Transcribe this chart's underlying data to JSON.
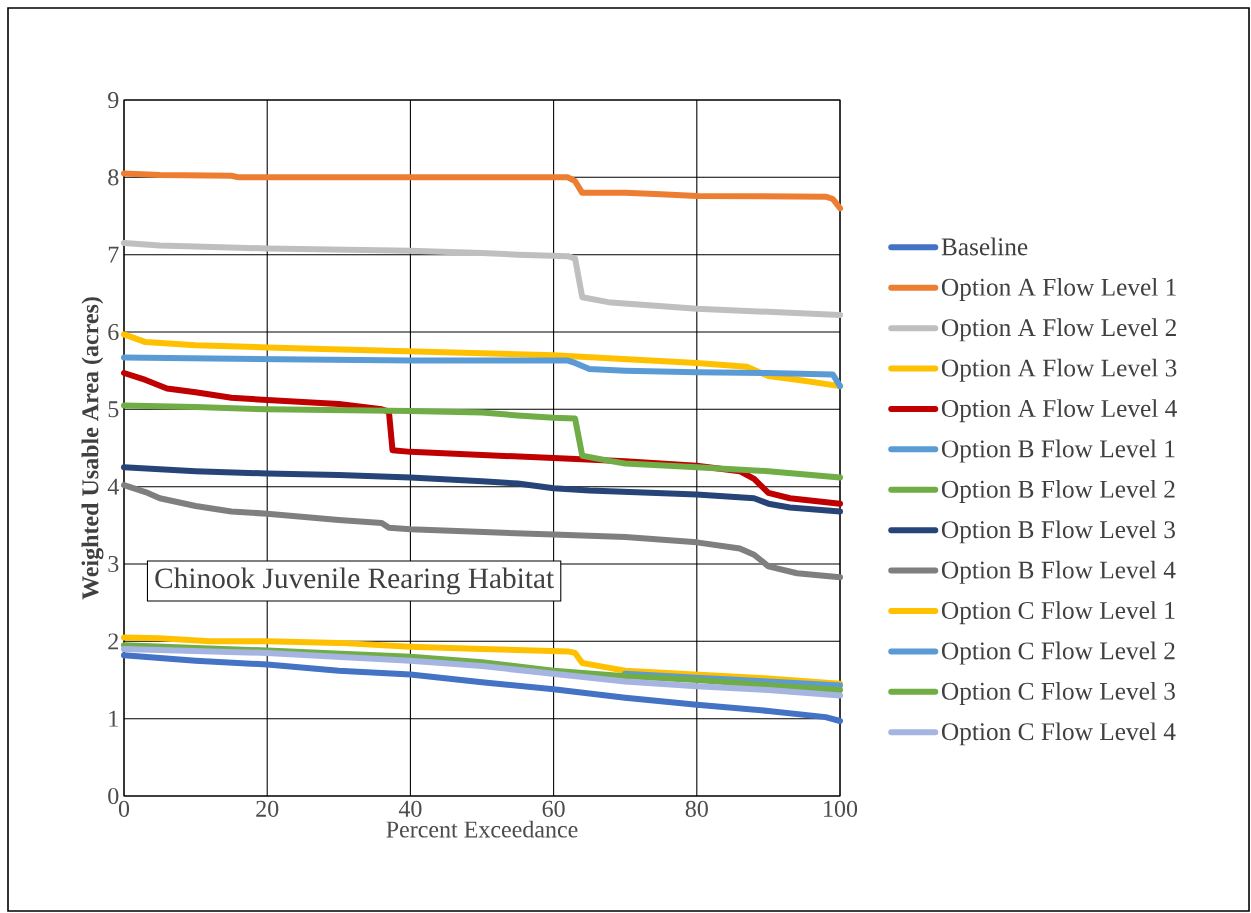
{
  "chart_data": {
    "type": "line",
    "xlabel": "Percent Exceedance",
    "ylabel": "Weighted Usable Area (acres)",
    "xlim": [
      0,
      100
    ],
    "ylim": [
      0,
      9
    ],
    "xticks": [
      0,
      20,
      40,
      60,
      80,
      100
    ],
    "yticks": [
      0,
      1,
      2,
      3,
      4,
      5,
      6,
      7,
      8,
      9
    ],
    "grid": true,
    "legend": "right",
    "marker": "none",
    "line_style": "solid",
    "annotations": [
      "Chinook Juvenile Rearing Habitat"
    ],
    "series": [
      {
        "name": "Baseline",
        "color": "#4472c4",
        "x": [
          0,
          10,
          20,
          30,
          40,
          50,
          60,
          70,
          80,
          90,
          98,
          100
        ],
        "values": [
          1.82,
          1.75,
          1.7,
          1.62,
          1.57,
          1.47,
          1.38,
          1.27,
          1.18,
          1.1,
          1.02,
          0.97
        ]
      },
      {
        "name": "Option A Flow Level 1",
        "color": "#ed7d31",
        "x": [
          0,
          5,
          15,
          16,
          60,
          62,
          63,
          64,
          70,
          75,
          80,
          98,
          99,
          100
        ],
        "values": [
          8.05,
          8.03,
          8.02,
          8.0,
          8.0,
          8.0,
          7.95,
          7.8,
          7.8,
          7.78,
          7.76,
          7.75,
          7.72,
          7.6
        ]
      },
      {
        "name": "Option A Flow Level 2",
        "color": "#bfbfbf",
        "x": [
          0,
          5,
          20,
          40,
          50,
          55,
          62,
          63,
          64,
          68,
          80,
          100
        ],
        "values": [
          7.15,
          7.12,
          7.08,
          7.05,
          7.02,
          7.0,
          6.98,
          6.95,
          6.45,
          6.38,
          6.3,
          6.22
        ]
      },
      {
        "name": "Option A Flow Level 3",
        "color": "#ffc000",
        "x": [
          0,
          3,
          10,
          20,
          40,
          60,
          80,
          87,
          90,
          95,
          100
        ],
        "values": [
          5.97,
          5.87,
          5.83,
          5.8,
          5.75,
          5.7,
          5.6,
          5.55,
          5.43,
          5.37,
          5.3
        ]
      },
      {
        "name": "Option A Flow Level 4",
        "color": "#c00000",
        "x": [
          0,
          3,
          6,
          10,
          15,
          20,
          30,
          36,
          37,
          37.5,
          40,
          60,
          70,
          80,
          86,
          88,
          90,
          93,
          100
        ],
        "values": [
          5.47,
          5.38,
          5.27,
          5.22,
          5.15,
          5.12,
          5.07,
          5.0,
          4.97,
          4.47,
          4.45,
          4.37,
          4.33,
          4.27,
          4.2,
          4.1,
          3.92,
          3.85,
          3.78
        ]
      },
      {
        "name": "Option B Flow Level 1",
        "color": "#5b9bd5",
        "x": [
          0,
          10,
          20,
          40,
          62,
          63,
          65,
          70,
          80,
          90,
          99,
          100
        ],
        "values": [
          5.67,
          5.66,
          5.65,
          5.63,
          5.63,
          5.6,
          5.52,
          5.5,
          5.48,
          5.47,
          5.45,
          5.3
        ]
      },
      {
        "name": "Option B Flow Level 2",
        "color": "#70ad47",
        "x": [
          0,
          10,
          20,
          40,
          50,
          55,
          60,
          63,
          64,
          68,
          70,
          80,
          90,
          100
        ],
        "values": [
          5.05,
          5.03,
          5.0,
          4.98,
          4.96,
          4.92,
          4.89,
          4.88,
          4.4,
          4.33,
          4.3,
          4.25,
          4.2,
          4.12
        ]
      },
      {
        "name": "Option B Flow Level 3",
        "color": "#264478",
        "x": [
          0,
          10,
          20,
          30,
          40,
          50,
          55,
          60,
          65,
          80,
          88,
          90,
          93,
          100
        ],
        "values": [
          4.25,
          4.2,
          4.17,
          4.15,
          4.12,
          4.07,
          4.04,
          3.98,
          3.95,
          3.9,
          3.85,
          3.78,
          3.73,
          3.68
        ]
      },
      {
        "name": "Option B Flow Level 4",
        "color": "#7f7f7f",
        "x": [
          0,
          3,
          5,
          10,
          15,
          20,
          30,
          36,
          37,
          40,
          60,
          70,
          80,
          86,
          88,
          90,
          94,
          100
        ],
        "values": [
          4.02,
          3.93,
          3.85,
          3.75,
          3.68,
          3.65,
          3.57,
          3.53,
          3.47,
          3.45,
          3.38,
          3.35,
          3.28,
          3.2,
          3.12,
          2.97,
          2.88,
          2.83
        ]
      },
      {
        "name": "Option C Flow Level 1",
        "color": "#ffc000",
        "x": [
          0,
          5,
          12,
          20,
          30,
          40,
          50,
          62,
          63,
          64,
          67,
          70,
          80,
          90,
          100
        ],
        "values": [
          2.05,
          2.04,
          2.0,
          2.0,
          1.98,
          1.93,
          1.9,
          1.87,
          1.85,
          1.72,
          1.67,
          1.62,
          1.57,
          1.52,
          1.45
        ]
      },
      {
        "name": "Option C Flow Level 2",
        "color": "#5b9bd5",
        "x": [
          70,
          80,
          90,
          100
        ],
        "values": [
          1.58,
          1.53,
          1.48,
          1.43
        ]
      },
      {
        "name": "Option C Flow Level 3",
        "color": "#70ad47",
        "x": [
          0,
          20,
          40,
          50,
          60,
          70,
          80,
          90,
          100
        ],
        "values": [
          1.95,
          1.88,
          1.8,
          1.73,
          1.62,
          1.55,
          1.5,
          1.43,
          1.37
        ]
      },
      {
        "name": "Option C Flow Level 4",
        "color": "#a5b4e0",
        "x": [
          0,
          20,
          40,
          50,
          60,
          70,
          80,
          90,
          100
        ],
        "values": [
          1.9,
          1.85,
          1.75,
          1.68,
          1.58,
          1.48,
          1.42,
          1.37,
          1.3
        ]
      }
    ]
  }
}
